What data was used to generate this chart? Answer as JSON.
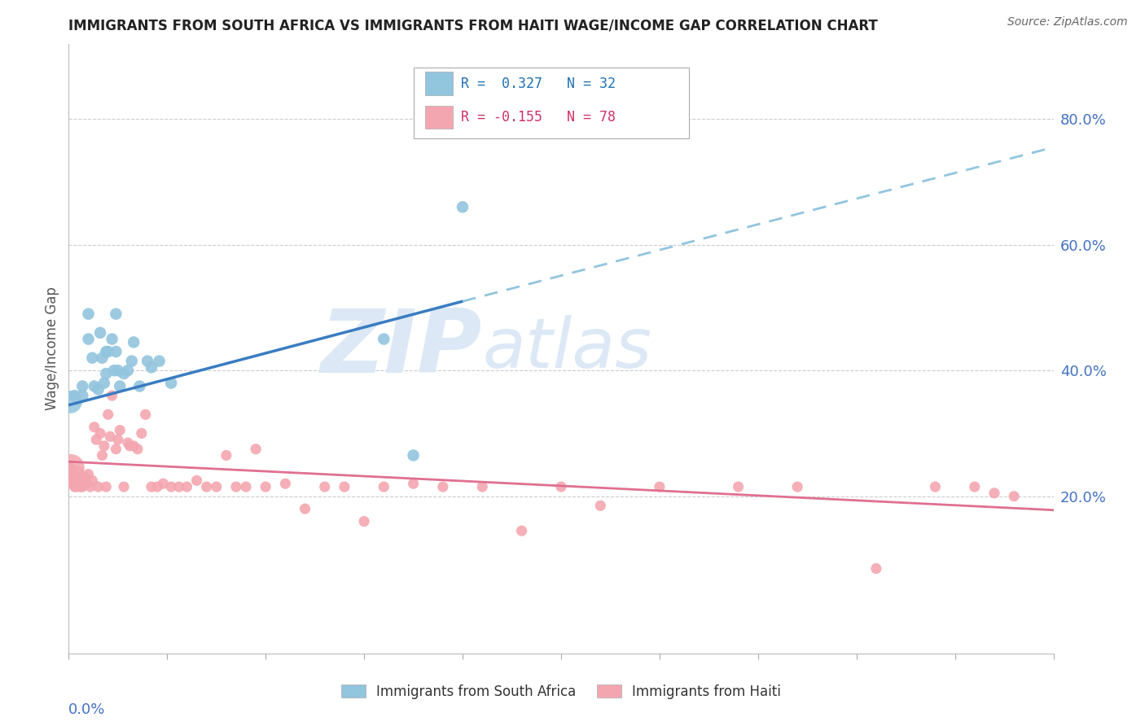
{
  "title": "IMMIGRANTS FROM SOUTH AFRICA VS IMMIGRANTS FROM HAITI WAGE/INCOME GAP CORRELATION CHART",
  "source": "Source: ZipAtlas.com",
  "ylabel": "Wage/Income Gap",
  "right_yticks": [
    0.2,
    0.4,
    0.6,
    0.8
  ],
  "right_yticklabels": [
    "20.0%",
    "40.0%",
    "60.0%",
    "80.0%"
  ],
  "blue_color": "#92c5de",
  "pink_color": "#f4a6b0",
  "blue_line_color": "#3a7cc1",
  "pink_line_color": "#e07090",
  "dashed_line_color": "#92c5de",
  "watermark_zip": "ZIP",
  "watermark_atlas": "atlas",
  "south_africa_x": [
    0.003,
    0.007,
    0.007,
    0.01,
    0.01,
    0.012,
    0.013,
    0.015,
    0.016,
    0.017,
    0.018,
    0.019,
    0.019,
    0.02,
    0.022,
    0.023,
    0.024,
    0.024,
    0.025,
    0.026,
    0.028,
    0.03,
    0.032,
    0.033,
    0.036,
    0.04,
    0.042,
    0.046,
    0.052,
    0.16,
    0.175,
    0.2
  ],
  "south_africa_y": [
    0.36,
    0.375,
    0.36,
    0.49,
    0.45,
    0.42,
    0.375,
    0.37,
    0.46,
    0.42,
    0.38,
    0.395,
    0.43,
    0.43,
    0.45,
    0.4,
    0.49,
    0.43,
    0.4,
    0.375,
    0.395,
    0.4,
    0.415,
    0.445,
    0.375,
    0.415,
    0.405,
    0.415,
    0.38,
    0.45,
    0.265,
    0.66
  ],
  "haiti_x": [
    0.001,
    0.001,
    0.001,
    0.002,
    0.002,
    0.003,
    0.003,
    0.003,
    0.004,
    0.004,
    0.004,
    0.005,
    0.005,
    0.005,
    0.006,
    0.006,
    0.007,
    0.007,
    0.008,
    0.008,
    0.009,
    0.01,
    0.011,
    0.012,
    0.013,
    0.014,
    0.015,
    0.016,
    0.017,
    0.018,
    0.019,
    0.02,
    0.021,
    0.022,
    0.024,
    0.025,
    0.026,
    0.028,
    0.03,
    0.031,
    0.033,
    0.035,
    0.037,
    0.039,
    0.042,
    0.045,
    0.048,
    0.052,
    0.056,
    0.06,
    0.065,
    0.07,
    0.075,
    0.08,
    0.085,
    0.09,
    0.095,
    0.1,
    0.11,
    0.12,
    0.13,
    0.14,
    0.15,
    0.16,
    0.175,
    0.19,
    0.21,
    0.23,
    0.25,
    0.27,
    0.3,
    0.34,
    0.37,
    0.41,
    0.44,
    0.46,
    0.47,
    0.48
  ],
  "haiti_y": [
    0.245,
    0.245,
    0.24,
    0.23,
    0.22,
    0.225,
    0.215,
    0.23,
    0.225,
    0.215,
    0.22,
    0.24,
    0.22,
    0.225,
    0.215,
    0.225,
    0.23,
    0.215,
    0.23,
    0.225,
    0.22,
    0.235,
    0.215,
    0.225,
    0.31,
    0.29,
    0.215,
    0.3,
    0.265,
    0.28,
    0.215,
    0.33,
    0.295,
    0.36,
    0.275,
    0.29,
    0.305,
    0.215,
    0.285,
    0.28,
    0.28,
    0.275,
    0.3,
    0.33,
    0.215,
    0.215,
    0.22,
    0.215,
    0.215,
    0.215,
    0.225,
    0.215,
    0.215,
    0.265,
    0.215,
    0.215,
    0.275,
    0.215,
    0.22,
    0.18,
    0.215,
    0.215,
    0.16,
    0.215,
    0.22,
    0.215,
    0.215,
    0.145,
    0.215,
    0.185,
    0.215,
    0.215,
    0.215,
    0.085,
    0.215,
    0.215,
    0.205,
    0.2
  ],
  "haiti_large_x": [
    0.001
  ],
  "haiti_large_y": [
    0.245
  ],
  "sa_large_x": [
    0.001
  ],
  "sa_large_y": [
    0.35
  ],
  "xlim": [
    0.0,
    0.5
  ],
  "ylim": [
    -0.05,
    0.92
  ],
  "blue_trend_x": [
    0.0,
    0.2
  ],
  "blue_trend_y": [
    0.345,
    0.51
  ],
  "dash_trend_x": [
    0.2,
    0.5
  ],
  "dash_trend_y": [
    0.51,
    0.755
  ],
  "pink_trend_x": [
    0.0,
    0.5
  ],
  "pink_trend_y": [
    0.255,
    0.178
  ]
}
